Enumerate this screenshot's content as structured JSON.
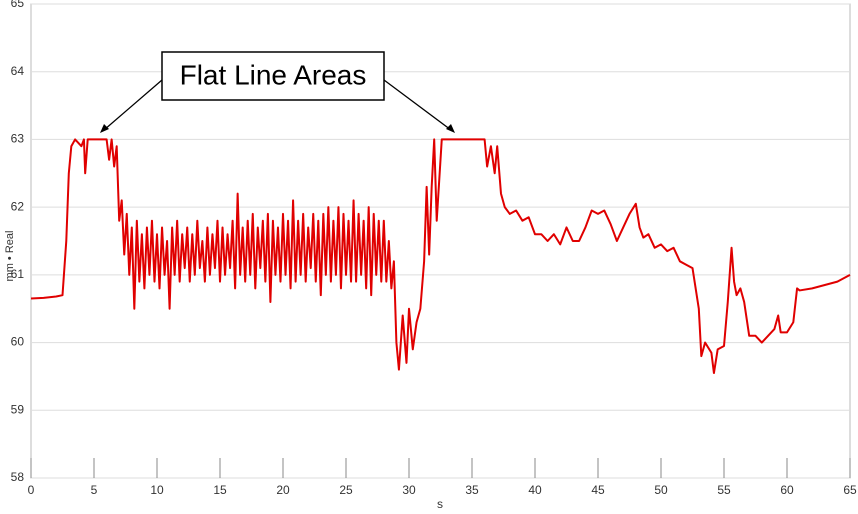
{
  "chart_data": {
    "type": "line",
    "xlabel": "s",
    "ylabel": "mm • Real",
    "annotation": "Flat Line Areas",
    "color": "#e00000",
    "grid": true,
    "xlim": [
      0,
      65
    ],
    "xticks": [
      0,
      5,
      10,
      15,
      20,
      25,
      30,
      35,
      40,
      45,
      50,
      55,
      60,
      65
    ],
    "ylim": [
      58,
      65
    ],
    "yticks": [
      58,
      59,
      60,
      61,
      62,
      63,
      64,
      65
    ],
    "x": [
      0,
      1,
      2,
      2.5,
      2.8,
      3.0,
      3.2,
      3.5,
      4.0,
      4.2,
      4.3,
      4.5,
      6.0,
      6.2,
      6.4,
      6.6,
      6.8,
      7.0,
      7.2,
      7.4,
      7.6,
      7.8,
      8.0,
      8.2,
      8.4,
      8.6,
      8.8,
      9.0,
      9.2,
      9.4,
      9.6,
      9.8,
      10.0,
      10.2,
      10.4,
      10.6,
      10.8,
      11.0,
      11.2,
      11.4,
      11.6,
      11.8,
      12.0,
      12.2,
      12.4,
      12.6,
      12.8,
      13.0,
      13.2,
      13.4,
      13.6,
      13.8,
      14.0,
      14.2,
      14.4,
      14.6,
      14.8,
      15.0,
      15.2,
      15.4,
      15.6,
      15.8,
      16.0,
      16.2,
      16.4,
      16.6,
      16.8,
      17.0,
      17.2,
      17.4,
      17.6,
      17.8,
      18.0,
      18.2,
      18.4,
      18.6,
      18.8,
      19.0,
      19.2,
      19.4,
      19.6,
      19.8,
      20.0,
      20.2,
      20.4,
      20.6,
      20.8,
      21.0,
      21.2,
      21.4,
      21.6,
      21.8,
      22.0,
      22.2,
      22.4,
      22.6,
      22.8,
      23.0,
      23.2,
      23.4,
      23.6,
      23.8,
      24.0,
      24.2,
      24.4,
      24.6,
      24.8,
      25.0,
      25.2,
      25.4,
      25.6,
      25.8,
      26.0,
      26.2,
      26.4,
      26.6,
      26.8,
      27.0,
      27.2,
      27.4,
      27.6,
      27.8,
      28.0,
      28.2,
      28.4,
      28.6,
      28.8,
      29.0,
      29.2,
      29.5,
      29.8,
      30.0,
      30.3,
      30.6,
      30.9,
      31.2,
      31.4,
      31.6,
      31.8,
      32.0,
      32.2,
      32.4,
      32.6,
      33.0,
      36.0,
      36.2,
      36.5,
      36.8,
      37.0,
      37.3,
      37.6,
      38,
      38.5,
      39,
      39.5,
      40,
      40.5,
      41,
      41.5,
      42,
      42.5,
      43,
      43.5,
      44,
      44.5,
      45,
      45.5,
      46,
      46.5,
      47,
      47.5,
      48,
      48.3,
      48.6,
      49,
      49.5,
      50,
      50.5,
      51,
      51.5,
      52,
      52.5,
      53,
      53.2,
      53.5,
      54,
      54.2,
      54.5,
      55,
      55.3,
      55.6,
      55.8,
      56,
      56.3,
      56.6,
      57,
      57.5,
      58,
      58.5,
      59,
      59.3,
      59.5,
      60,
      60.5,
      60.8,
      61,
      62,
      63,
      64,
      65
    ],
    "values": [
      60.65,
      60.66,
      60.68,
      60.7,
      61.5,
      62.5,
      62.9,
      63.0,
      62.9,
      63.0,
      62.5,
      63.0,
      63.0,
      62.7,
      63.0,
      62.6,
      62.9,
      61.8,
      62.1,
      61.3,
      61.9,
      61.0,
      61.7,
      60.5,
      61.8,
      60.9,
      61.6,
      60.8,
      61.7,
      61.0,
      61.8,
      60.9,
      61.6,
      60.8,
      61.7,
      61.0,
      61.5,
      60.5,
      61.7,
      61.0,
      61.8,
      60.9,
      61.6,
      61.1,
      61.7,
      60.9,
      61.6,
      61.0,
      61.8,
      61.1,
      61.5,
      60.9,
      61.7,
      61.0,
      61.6,
      61.1,
      61.8,
      60.9,
      61.7,
      61.0,
      61.6,
      61.1,
      61.8,
      60.8,
      62.2,
      61.0,
      61.7,
      60.9,
      61.8,
      61.0,
      61.9,
      60.8,
      61.7,
      61.1,
      61.8,
      60.9,
      61.9,
      60.6,
      61.8,
      61.0,
      61.7,
      60.9,
      61.9,
      61.0,
      61.8,
      60.8,
      62.1,
      60.9,
      61.8,
      61.0,
      61.9,
      60.9,
      61.7,
      61.1,
      61.9,
      60.9,
      61.8,
      60.7,
      61.9,
      61.0,
      62.0,
      60.9,
      61.8,
      61.0,
      62.0,
      60.8,
      61.9,
      61.0,
      61.8,
      60.9,
      62.1,
      60.9,
      61.9,
      61.0,
      61.8,
      60.8,
      62.0,
      60.7,
      61.9,
      61.0,
      61.8,
      60.9,
      61.8,
      60.9,
      61.5,
      60.8,
      61.2,
      60.0,
      59.6,
      60.4,
      59.7,
      60.5,
      59.9,
      60.3,
      60.5,
      61.2,
      62.3,
      61.3,
      62.3,
      63.0,
      61.8,
      62.4,
      63.0,
      63.0,
      63.0,
      62.6,
      62.9,
      62.5,
      62.9,
      62.2,
      62.0,
      61.9,
      61.95,
      61.8,
      61.85,
      61.6,
      61.6,
      61.5,
      61.6,
      61.45,
      61.7,
      61.5,
      61.5,
      61.7,
      61.95,
      61.9,
      61.95,
      61.75,
      61.5,
      61.7,
      61.9,
      62.05,
      61.7,
      61.55,
      61.6,
      61.4,
      61.45,
      61.35,
      61.4,
      61.2,
      61.15,
      61.1,
      60.5,
      59.8,
      60.0,
      59.85,
      59.55,
      59.9,
      59.95,
      60.6,
      61.4,
      60.9,
      60.7,
      60.8,
      60.6,
      60.1,
      60.1,
      60.0,
      60.1,
      60.2,
      60.4,
      60.15,
      60.15,
      60.3,
      60.8,
      60.77,
      60.8,
      60.85,
      60.9,
      61.0
    ]
  }
}
